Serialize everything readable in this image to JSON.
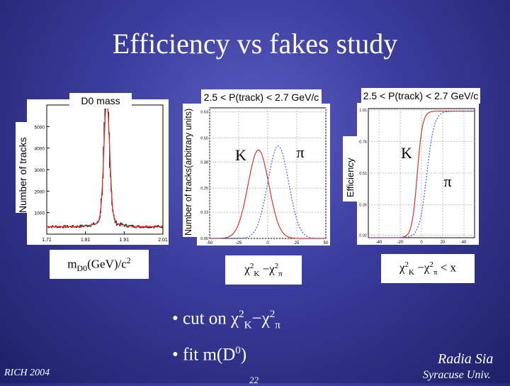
{
  "slide": {
    "title": "Efficiency vs fakes study",
    "bullet1": "• cut on χ²K−χ²π",
    "bullet1_parts": {
      "a": "• cut on χ",
      "b": "2",
      "c": "K",
      "d": "−χ",
      "e": "2",
      "f": "π"
    },
    "bullet2_parts": {
      "a": "• fit m(D",
      "b": "0",
      "c": ")"
    },
    "footer_left": "RICH 2004",
    "footer_center": "22",
    "author": "Radia Sia",
    "affiliation": "Syracuse Univ."
  },
  "colors": {
    "red": "#d9332b",
    "blue": "#4a5fd6",
    "black": "#222222"
  },
  "chart_data": [
    {
      "type": "line",
      "title": "D0 mass",
      "ylabel": "Number of tracks",
      "xlabel_parts": {
        "a": "m",
        "b": "D0",
        "c": "(GeV)/c",
        "d": "2"
      },
      "xticks": [
        "1.71",
        "1.81",
        "1.91",
        "2.01"
      ],
      "yticks": [
        "1000",
        "2000",
        "3000",
        "4000",
        "5000"
      ],
      "xlim": [
        1.71,
        2.01
      ],
      "ylim": [
        0,
        6000
      ],
      "peak_center": 1.865,
      "peak_height": 5600,
      "background_level": 350,
      "series": []
    },
    {
      "type": "line",
      "title": "2.5 < P(track) < 2.7 GeV/c",
      "ylabel": "Number of tracks(arbitrary units)",
      "xlabel_parts": {
        "a": "χ",
        "b": "2",
        "c": "K",
        "d": " −χ",
        "e": "2",
        "f": "π"
      },
      "xticks": [
        "-50",
        "-25",
        "0",
        "25",
        "50"
      ],
      "yticks": [
        "0.00",
        "0.13",
        "0.25",
        "0.38",
        "0.50",
        "0.63"
      ],
      "xlim": [
        -50,
        50
      ],
      "ylim": [
        0,
        0.65
      ],
      "annotations": [
        "K",
        "π"
      ],
      "series": [
        {
          "label": "K",
          "mean": -8,
          "sigma": 9,
          "amplitude": 0.44
        },
        {
          "label": "π",
          "mean": 9,
          "sigma": 9,
          "amplitude": 0.46
        }
      ]
    },
    {
      "type": "line",
      "title": "2.5 < P(track) < 2.7 GeV/c",
      "ylabel": "Efficiency",
      "xlabel_parts": {
        "a": "χ",
        "b": "2",
        "c": "K",
        "d": " −χ",
        "e": "2",
        "f": "π",
        "g": " < x"
      },
      "xticks": [
        "-40",
        "-20",
        "0",
        "20",
        "40"
      ],
      "yticks": [
        "0.02",
        "0.26",
        "0.51",
        "0.76",
        "1.01"
      ],
      "xlim": [
        -50,
        50
      ],
      "ylim": [
        0,
        1.02
      ],
      "annotations": [
        "K",
        "π"
      ],
      "series": [
        {
          "label": "K",
          "center": -4,
          "width": 2.5
        },
        {
          "label": "π",
          "center": 5,
          "width": 3.5
        }
      ]
    }
  ]
}
